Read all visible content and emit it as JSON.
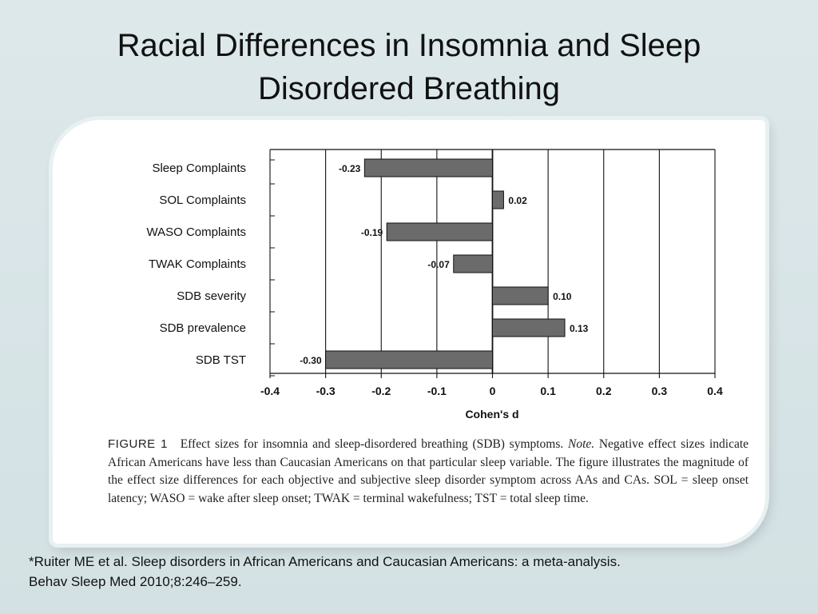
{
  "slide": {
    "title": "Racial Differences in Insomnia and Sleep Disordered Breathing",
    "citation_line1": "*Ruiter ME et al. Sleep disorders in African Americans and Caucasian Americans: a meta-analysis.",
    "citation_line2": "Behav Sleep Med 2010;8:246–259."
  },
  "figure": {
    "label": "FIGURE 1",
    "caption_before_note": "Effect sizes for insomnia and sleep-disordered breathing (SDB) symptoms.",
    "caption_note": "Note.",
    "caption_after_note": "Negative effect sizes indicate African Americans have less than Caucasian Americans on that particular sleep variable. The figure illustrates the magnitude of the effect size differences for each objective and subjective sleep disorder symptom across AAs and CAs. SOL = sleep onset latency; WASO = wake after sleep onset; TWAK = terminal wakefulness; TST = total sleep time."
  },
  "chart_data": {
    "type": "bar",
    "orientation": "horizontal",
    "title": "",
    "xlabel": "Cohen's d",
    "ylabel": "",
    "xlim": [
      -0.4,
      0.4
    ],
    "xticks": [
      -0.4,
      -0.3,
      -0.2,
      -0.1,
      0,
      0.1,
      0.2,
      0.3,
      0.4
    ],
    "xtick_labels": [
      "-0.4",
      "-0.3",
      "-0.2",
      "-0.1",
      "0",
      "0.1",
      "0.2",
      "0.3",
      "0.4"
    ],
    "grid": true,
    "categories": [
      "Sleep Complaints",
      "SOL Complaints",
      "WASO Complaints",
      "TWAK Complaints",
      "SDB severity",
      "SDB prevalence",
      "SDB TST"
    ],
    "values": [
      -0.23,
      0.02,
      -0.19,
      -0.07,
      0.1,
      0.13,
      -0.3
    ],
    "value_labels": [
      "-0.23",
      "0.02",
      "-0.19",
      "-0.07",
      "0.10",
      "0.13",
      "-0.30"
    ],
    "bar_color": "#6b6b6b"
  }
}
